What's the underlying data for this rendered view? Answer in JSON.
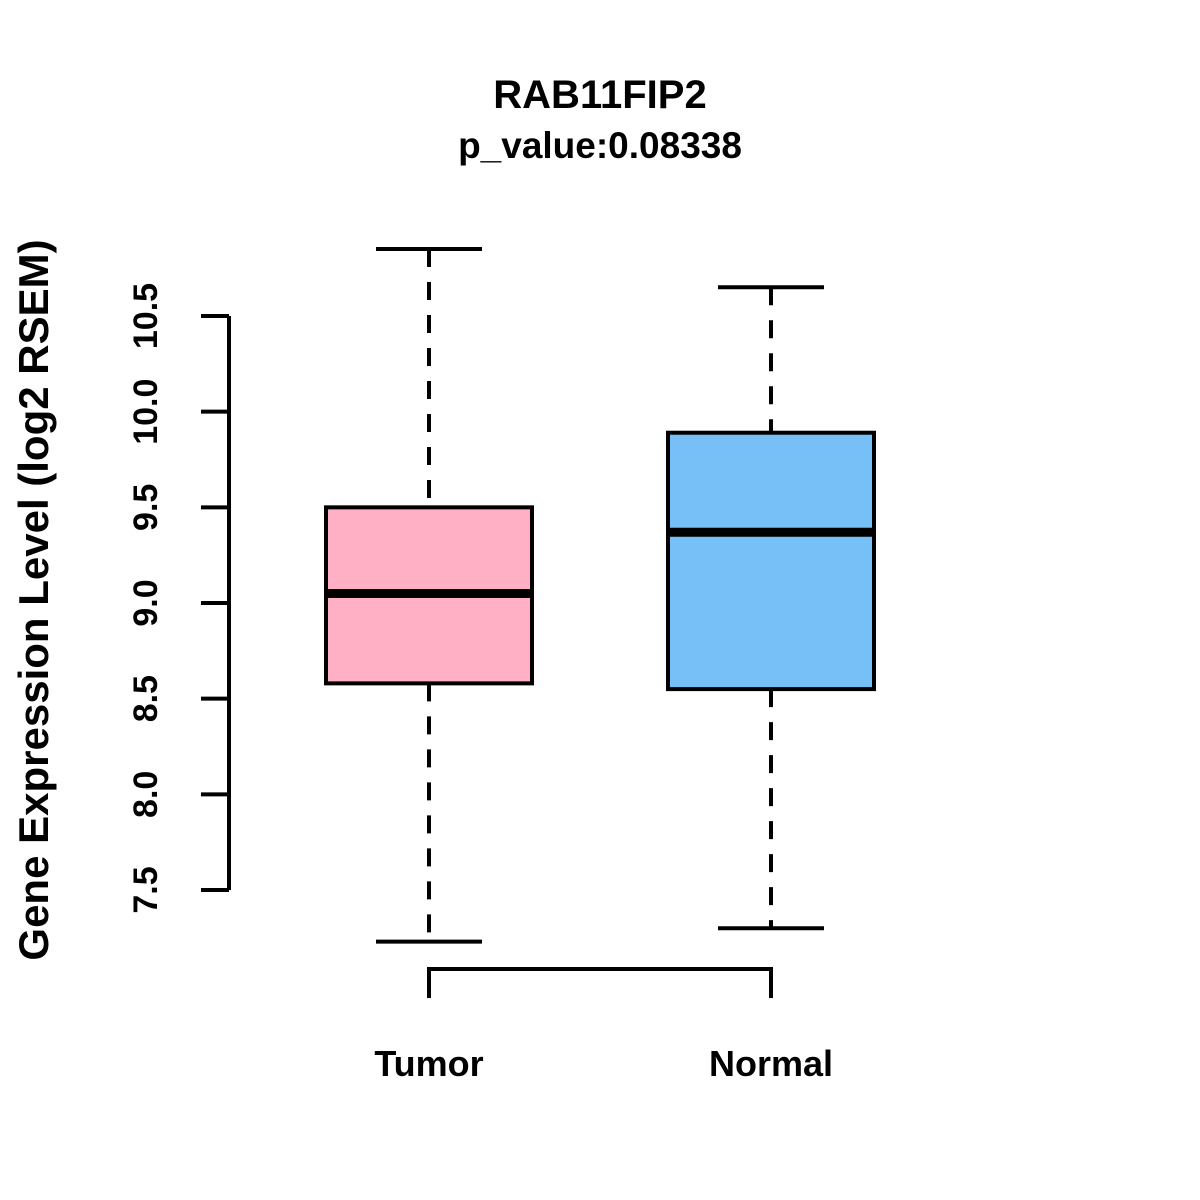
{
  "figure": {
    "background": "#FFFFFF",
    "line_color": "#000000"
  },
  "chart_data": {
    "type": "boxplot",
    "title": "RAB11FIP2",
    "subtitle": "p_value:0.08338",
    "p_value": 0.08338,
    "ylabel": "Gene Expression Level (log2 RSEM)",
    "categories": [
      "Tumor",
      "Normal"
    ],
    "yticks": [
      7.5,
      8.0,
      8.5,
      9.0,
      9.5,
      10.0,
      10.5
    ],
    "ylim": [
      7.2,
      10.9
    ],
    "grid": false,
    "legend": "none",
    "series": [
      {
        "name": "Tumor",
        "color": "#FFB0C4",
        "whisker_low": 7.23,
        "q1": 8.58,
        "median": 9.05,
        "q3": 9.5,
        "whisker_high": 10.85
      },
      {
        "name": "Normal",
        "color": "#76BFF7",
        "whisker_low": 7.3,
        "q1": 8.55,
        "median": 9.37,
        "q3": 9.89,
        "whisker_high": 10.65
      }
    ],
    "comparison_bracket": {
      "from": "Tumor",
      "to": "Normal"
    }
  }
}
